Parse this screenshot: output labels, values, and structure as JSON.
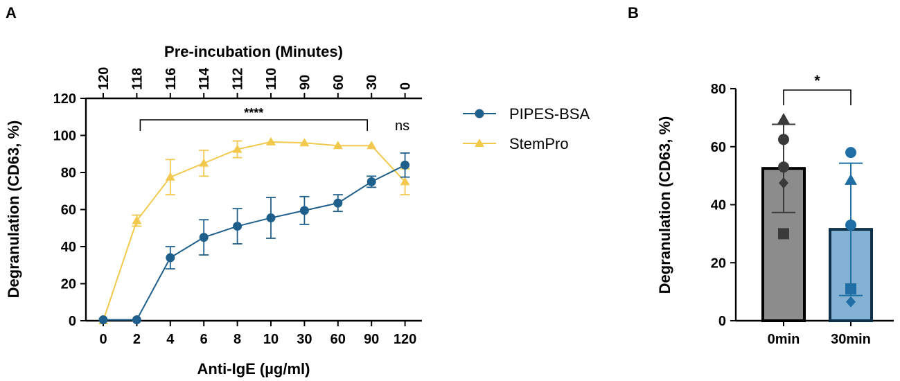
{
  "chart_data": [
    {
      "panel": "A",
      "type": "line",
      "xlabel": "Anti-IgE (µg/ml)",
      "ylabel": "Degranulation (CD63, %)",
      "top_axis_label": "Pre-incubation (Minutes)",
      "categories": [
        "0",
        "2",
        "4",
        "6",
        "8",
        "10",
        "30",
        "60",
        "90",
        "120"
      ],
      "top_categories": [
        "120",
        "118",
        "116",
        "114",
        "112",
        "110",
        "90",
        "60",
        "30",
        "0"
      ],
      "ylim": [
        0,
        120
      ],
      "yticks": [
        "0",
        "20",
        "40",
        "60",
        "80",
        "100",
        "120"
      ],
      "series": [
        {
          "name": "PIPES-BSA",
          "color": "#1f5f8b",
          "marker": "circle",
          "values": [
            0.5,
            0.5,
            34,
            45,
            51,
            55.5,
            59.5,
            63.5,
            75,
            84
          ],
          "errors": [
            0,
            0,
            6,
            9.5,
            9.5,
            11,
            7.5,
            4.5,
            3,
            6.5
          ]
        },
        {
          "name": "StemPro",
          "color": "#f2c94c",
          "marker": "triangle",
          "values": [
            0,
            54,
            77.5,
            85,
            92.5,
            96.5,
            96,
            94.5,
            94.5,
            75
          ],
          "errors": [
            0,
            3,
            9.5,
            7,
            4.5,
            0,
            0,
            0,
            0,
            7
          ]
        }
      ],
      "annotations": {
        "bracket_label": "****",
        "bracket_from": "2",
        "bracket_to": "90",
        "ns_label": "ns"
      }
    },
    {
      "panel": "B",
      "type": "bar",
      "ylabel": "Degranulation (CD63, %)",
      "categories": [
        "0min",
        "30min"
      ],
      "ylim": [
        0,
        80
      ],
      "yticks": [
        "0",
        "20",
        "40",
        "60",
        "80"
      ],
      "bars": [
        {
          "label": "0min",
          "value": 52.5,
          "sd": 15.2,
          "fill": "#8c8c8c",
          "point_color": "#3a3a3a",
          "points": [
            {
              "shape": "triangle",
              "value": 69.5
            },
            {
              "shape": "circle",
              "value": 62.5
            },
            {
              "shape": "circle",
              "value": 53
            },
            {
              "shape": "diamond",
              "value": 47.5
            },
            {
              "shape": "square",
              "value": 30
            }
          ]
        },
        {
          "label": "30min",
          "value": 31.5,
          "sd": 22.8,
          "fill": "#84b2d4",
          "point_color": "#1f6fa5",
          "points": [
            {
              "shape": "circle",
              "value": 58
            },
            {
              "shape": "triangle",
              "value": 48.5
            },
            {
              "shape": "circle",
              "value": 33
            },
            {
              "shape": "square",
              "value": 11
            },
            {
              "shape": "diamond",
              "value": 6.5
            }
          ]
        }
      ],
      "significance": "*"
    }
  ],
  "panels": {
    "a_label": "A",
    "b_label": "B"
  }
}
